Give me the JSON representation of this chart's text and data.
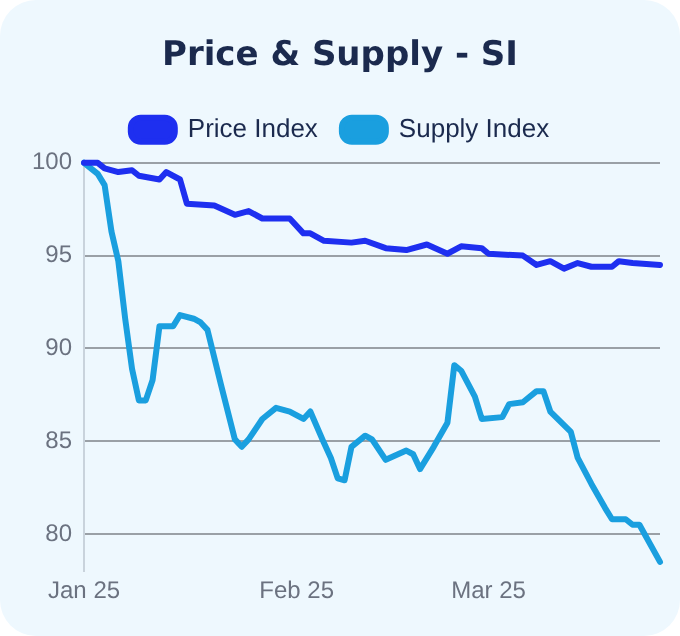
{
  "chart_data": {
    "type": "line",
    "title": "Price & Supply - SI",
    "xlim": [
      "2025-01-01",
      "2025-03-26"
    ],
    "xticks": [
      {
        "value": "2025-01-01",
        "label": "Jan 25"
      },
      {
        "value": "2025-02-01",
        "label": "Feb 25"
      },
      {
        "value": "2025-03-01",
        "label": "Mar 25"
      }
    ],
    "ylim": [
      78,
      100
    ],
    "yticks": [
      80,
      85,
      90,
      95,
      100
    ],
    "grid": "y",
    "legend": "top",
    "marker": "none",
    "line_style": "solid",
    "series": [
      {
        "name": "Price Index",
        "color": "#1e2ff0",
        "x": [
          "2025-01-01",
          "2025-01-03",
          "2025-01-04",
          "2025-01-06",
          "2025-01-08",
          "2025-01-09",
          "2025-01-12",
          "2025-01-13",
          "2025-01-15",
          "2025-01-16",
          "2025-01-20",
          "2025-01-23",
          "2025-01-25",
          "2025-01-27",
          "2025-01-31",
          "2025-02-02",
          "2025-02-03",
          "2025-02-05",
          "2025-02-09",
          "2025-02-11",
          "2025-02-14",
          "2025-02-17",
          "2025-02-20",
          "2025-02-23",
          "2025-02-25",
          "2025-02-28",
          "2025-03-01",
          "2025-03-06",
          "2025-03-08",
          "2025-03-10",
          "2025-03-12",
          "2025-03-14",
          "2025-03-16",
          "2025-03-19",
          "2025-03-20",
          "2025-03-22",
          "2025-03-26"
        ],
        "values": [
          100,
          100,
          99.7,
          99.5,
          99.6,
          99.3,
          99.1,
          99.5,
          99.1,
          97.8,
          97.7,
          97.2,
          97.4,
          97.0,
          97.0,
          96.2,
          96.2,
          95.8,
          95.7,
          95.8,
          95.4,
          95.3,
          95.6,
          95.1,
          95.5,
          95.4,
          95.1,
          95.0,
          94.5,
          94.7,
          94.3,
          94.6,
          94.4,
          94.4,
          94.7,
          94.6,
          94.5
        ]
      },
      {
        "name": "Supply Index",
        "color": "#1a9fdf",
        "x": [
          "2025-01-01",
          "2025-01-03",
          "2025-01-04",
          "2025-01-05",
          "2025-01-06",
          "2025-01-07",
          "2025-01-08",
          "2025-01-09",
          "2025-01-10",
          "2025-01-11",
          "2025-01-12",
          "2025-01-14",
          "2025-01-15",
          "2025-01-17",
          "2025-01-18",
          "2025-01-19",
          "2025-01-21",
          "2025-01-23",
          "2025-01-24",
          "2025-01-25",
          "2025-01-27",
          "2025-01-29",
          "2025-01-31",
          "2025-02-02",
          "2025-02-03",
          "2025-02-05",
          "2025-02-06",
          "2025-02-07",
          "2025-02-08",
          "2025-02-09",
          "2025-02-11",
          "2025-02-12",
          "2025-02-14",
          "2025-02-17",
          "2025-02-18",
          "2025-02-19",
          "2025-02-21",
          "2025-02-23",
          "2025-02-24",
          "2025-02-25",
          "2025-02-27",
          "2025-02-28",
          "2025-03-03",
          "2025-03-04",
          "2025-03-06",
          "2025-03-08",
          "2025-03-09",
          "2025-03-10",
          "2025-03-13",
          "2025-03-14",
          "2025-03-16",
          "2025-03-18",
          "2025-03-19",
          "2025-03-21",
          "2025-03-22",
          "2025-03-23",
          "2025-03-26"
        ],
        "values": [
          100,
          99.4,
          98.8,
          96.3,
          94.7,
          91.6,
          88.9,
          87.2,
          87.2,
          88.3,
          91.2,
          91.2,
          91.8,
          91.6,
          91.4,
          91.0,
          88.0,
          85.1,
          84.7,
          85.1,
          86.2,
          86.8,
          86.6,
          86.2,
          86.6,
          84.9,
          84.1,
          83.0,
          82.9,
          84.7,
          85.3,
          85.1,
          84.0,
          84.5,
          84.3,
          83.5,
          84.7,
          86.0,
          89.1,
          88.8,
          87.4,
          86.2,
          86.3,
          87.0,
          87.1,
          87.7,
          87.7,
          86.6,
          85.5,
          84.1,
          82.7,
          81.4,
          80.8,
          80.8,
          80.5,
          80.5,
          78.5
        ]
      }
    ]
  }
}
